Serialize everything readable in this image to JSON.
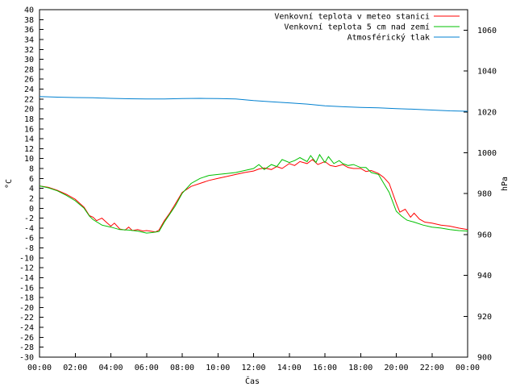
{
  "chart_data": {
    "type": "line",
    "xlabel": "Čas",
    "ylabel": "°C",
    "y2label": "hPa",
    "xlim": [
      0,
      24
    ],
    "ylim": [
      -30,
      40
    ],
    "y2lim": [
      900,
      1070
    ],
    "grid": false,
    "legend_position": "top-right",
    "x_tick_labels": [
      "00:00",
      "02:00",
      "04:00",
      "06:00",
      "08:00",
      "10:00",
      "12:00",
      "14:00",
      "16:00",
      "18:00",
      "20:00",
      "22:00",
      "00:00"
    ],
    "y_ticks": [
      -30,
      -28,
      -26,
      -24,
      -22,
      -20,
      -18,
      -16,
      -14,
      -12,
      -10,
      -8,
      -6,
      -4,
      -2,
      0,
      2,
      4,
      6,
      8,
      10,
      12,
      14,
      16,
      18,
      20,
      22,
      24,
      26,
      28,
      30,
      32,
      34,
      36,
      38,
      40
    ],
    "y2_ticks": [
      900,
      920,
      940,
      960,
      980,
      1000,
      1020,
      1040,
      1060
    ],
    "series": [
      {
        "name": "Venkovní teplota v meteo stanici",
        "axis": "y",
        "color": "#ff0000",
        "x": [
          0,
          0.5,
          1,
          1.5,
          2,
          2.5,
          2.8,
          3,
          3.2,
          3.5,
          3.8,
          4,
          4.2,
          4.5,
          4.8,
          5,
          5.2,
          5.5,
          5.8,
          6,
          6.2,
          6.5,
          6.7,
          7,
          7.3,
          7.6,
          8,
          8.5,
          9,
          9.5,
          10,
          10.5,
          11,
          11.5,
          12,
          12.3,
          12.6,
          13,
          13.3,
          13.6,
          14,
          14.3,
          14.6,
          15,
          15.3,
          15.6,
          16,
          16.3,
          16.6,
          17,
          17.3,
          17.6,
          18,
          18.3,
          18.6,
          19,
          19.3,
          19.6,
          20,
          20.2,
          20.5,
          20.8,
          21,
          21.3,
          21.6,
          22,
          22.5,
          23,
          23.5,
          24
        ],
        "values": [
          4.5,
          4.2,
          3.6,
          2.8,
          1.8,
          0.2,
          -1.5,
          -1.8,
          -2.5,
          -2.0,
          -3.0,
          -3.6,
          -3.0,
          -4.2,
          -4.4,
          -3.8,
          -4.5,
          -4.3,
          -4.6,
          -4.5,
          -4.6,
          -4.8,
          -4.4,
          -2.5,
          -1.0,
          0.8,
          3.2,
          4.4,
          5.0,
          5.6,
          6.0,
          6.4,
          6.8,
          7.2,
          7.5,
          7.9,
          8.1,
          7.8,
          8.4,
          8.0,
          9.0,
          8.6,
          9.4,
          9.0,
          9.8,
          8.8,
          9.4,
          8.6,
          8.4,
          8.8,
          8.2,
          8.0,
          8.0,
          7.4,
          7.6,
          7.0,
          6.2,
          5.0,
          1.0,
          -0.8,
          -0.2,
          -1.8,
          -1.0,
          -2.2,
          -2.8,
          -3.0,
          -3.4,
          -3.6,
          -4.0,
          -4.3
        ]
      },
      {
        "name": "Venkovní teplota 5 cm nad zemí",
        "axis": "y",
        "color": "#00c000",
        "x": [
          0,
          0.5,
          1,
          1.5,
          2,
          2.5,
          2.8,
          3,
          3.5,
          4,
          4.5,
          5,
          5.5,
          6,
          6.3,
          6.7,
          7,
          7.3,
          7.6,
          8,
          8.5,
          9,
          9.5,
          10,
          10.5,
          11,
          11.5,
          12,
          12.3,
          12.6,
          13,
          13.3,
          13.6,
          14,
          14.3,
          14.6,
          15,
          15.2,
          15.5,
          15.7,
          16,
          16.2,
          16.5,
          16.8,
          17,
          17.3,
          17.6,
          18,
          18.3,
          18.6,
          19,
          19.3,
          19.6,
          20,
          20.3,
          20.6,
          21,
          21.5,
          22,
          22.5,
          23,
          23.5,
          24
        ],
        "values": [
          4.5,
          4.1,
          3.5,
          2.6,
          1.5,
          0.0,
          -1.6,
          -2.3,
          -3.4,
          -3.8,
          -4.3,
          -4.4,
          -4.6,
          -5.0,
          -4.9,
          -4.7,
          -2.8,
          -1.2,
          0.4,
          3.0,
          5.0,
          6.0,
          6.6,
          6.8,
          7.0,
          7.2,
          7.6,
          8.0,
          8.8,
          7.8,
          8.8,
          8.4,
          9.8,
          9.2,
          9.6,
          10.2,
          9.4,
          10.6,
          9.2,
          10.8,
          9.2,
          10.4,
          9.0,
          9.6,
          9.0,
          8.6,
          8.8,
          8.2,
          8.2,
          7.2,
          6.8,
          5.0,
          3.2,
          -0.6,
          -1.6,
          -2.4,
          -2.8,
          -3.4,
          -3.8,
          -4.0,
          -4.3,
          -4.5,
          -4.6
        ]
      },
      {
        "name": "Atmosférický tlak",
        "axis": "y2",
        "color": "#0080d0",
        "x": [
          0,
          1,
          2,
          3,
          4,
          5,
          6,
          7,
          8,
          9,
          10,
          11,
          12,
          13,
          14,
          15,
          16,
          17,
          18,
          19,
          20,
          21,
          22,
          23,
          24
        ],
        "values": [
          1027.5,
          1027.2,
          1027.0,
          1026.9,
          1026.6,
          1026.4,
          1026.3,
          1026.3,
          1026.5,
          1026.6,
          1026.5,
          1026.3,
          1025.5,
          1024.9,
          1024.4,
          1023.8,
          1023.0,
          1022.5,
          1022.2,
          1022.0,
          1021.6,
          1021.3,
          1020.9,
          1020.5,
          1020.3
        ]
      }
    ]
  }
}
